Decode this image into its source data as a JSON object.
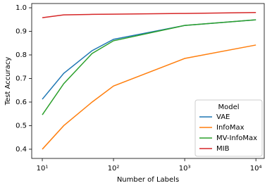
{
  "chart_data": {
    "type": "line",
    "x_label": "Number of Labels",
    "y_label": "Test Accuracy",
    "x": [
      10,
      20,
      50,
      100,
      1000,
      10000
    ],
    "series": [
      {
        "name": "VAE",
        "color": "#1f77b4",
        "values": [
          0.612,
          0.722,
          0.818,
          0.866,
          0.925,
          0.949
        ]
      },
      {
        "name": "InfoMax",
        "color": "#ff7f0e",
        "values": [
          0.4,
          0.5,
          0.6,
          0.668,
          0.785,
          0.842
        ]
      },
      {
        "name": "MV-InfoMax",
        "color": "#2ca02c",
        "values": [
          0.546,
          0.678,
          0.806,
          0.86,
          0.925,
          0.949
        ]
      },
      {
        "name": "MIB",
        "color": "#d62728",
        "values": [
          0.958,
          0.97,
          0.972,
          0.973,
          0.976,
          0.98
        ]
      }
    ],
    "log_x": true,
    "xlim": [
      7.1,
      13100
    ],
    "xticks": [
      {
        "value": 10,
        "label": "10¹"
      },
      {
        "value": 100,
        "label": "10²"
      },
      {
        "value": 1000,
        "label": "10³"
      },
      {
        "value": 10000,
        "label": "10⁴"
      }
    ],
    "ylim": [
      0.361,
      1.018
    ],
    "yticks": [
      0.4,
      0.5,
      0.6,
      0.7,
      0.8,
      0.9,
      {
        "value": 1.0,
        "label": "1.0"
      }
    ],
    "legend_title": "Model",
    "legend_position": "lower right"
  }
}
